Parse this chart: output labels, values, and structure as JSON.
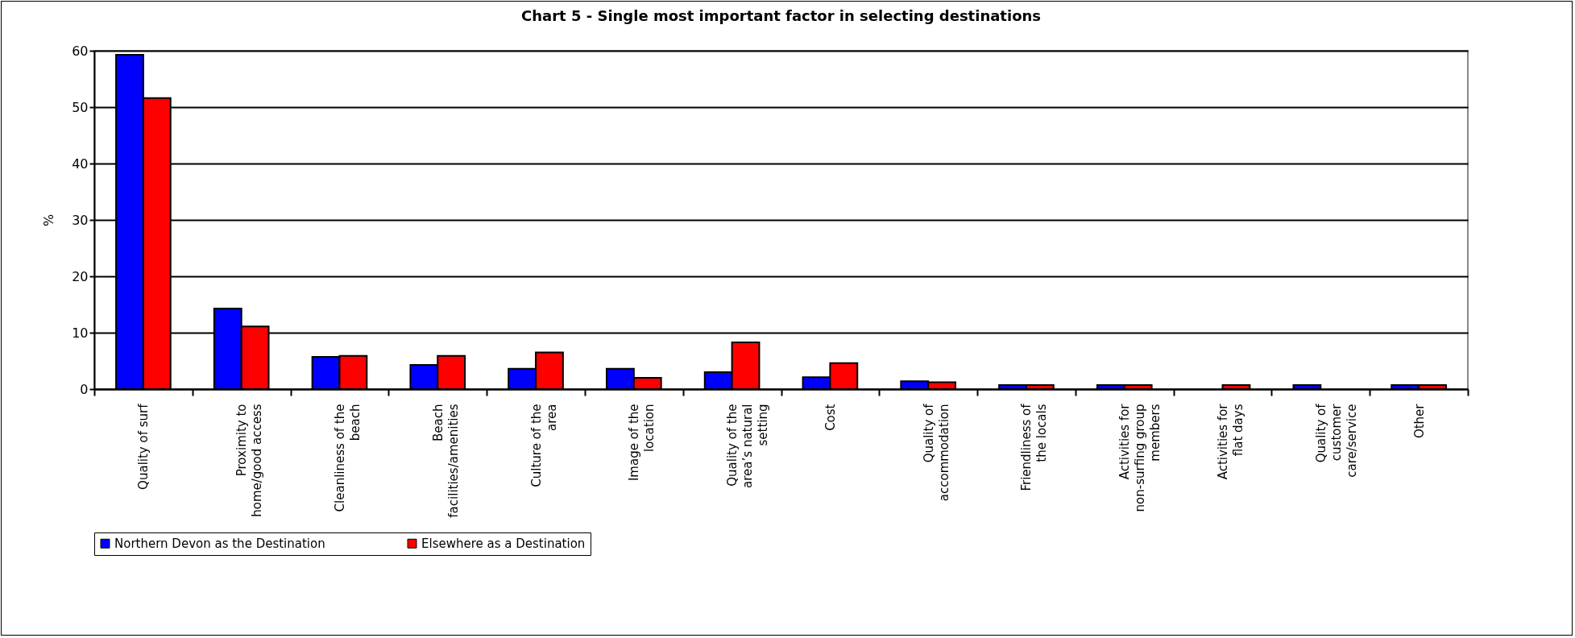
{
  "chart_data": {
    "type": "bar",
    "title": "Chart 5 - Single most important factor in selecting destinations",
    "ylabel": "%",
    "categories": [
      "Quality of surf",
      "Proximity to home/good access",
      "Cleanliness of the beach",
      "Beach facilities/amenities",
      "Culture of the area",
      "Image of the location",
      "Quality of the area’s natural setting",
      "Cost",
      "Quality of accommodation",
      "Friendliness of the locals",
      "Activities for non-surfing group members",
      "Activities for flat days",
      "Quality of customer care/service",
      "Other"
    ],
    "series": [
      {
        "name": "Northern Devon as the Destination",
        "color": "#0000ff",
        "values": [
          59.3,
          14.3,
          5.7,
          4.3,
          3.6,
          3.6,
          3.0,
          2.1,
          1.4,
          0.7,
          0.7,
          null,
          0.7,
          0.7
        ]
      },
      {
        "name": "Elsewhere as a Destination",
        "color": "#ff0000",
        "values": [
          51.6,
          11.1,
          5.9,
          5.9,
          6.5,
          2.0,
          8.3,
          4.6,
          1.2,
          0.7,
          0.7,
          0.7,
          null,
          0.7
        ]
      }
    ],
    "ylim": [
      0,
      60
    ],
    "yticks": [
      0,
      10,
      20,
      30,
      40,
      50,
      60
    ],
    "grid": "y",
    "legend": "bottom"
  }
}
